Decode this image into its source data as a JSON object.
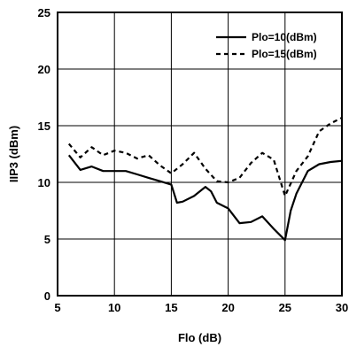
{
  "chart_data": {
    "type": "line",
    "xlabel": "Flo (dB)",
    "ylabel": "IIP3 (dBm)",
    "xlim": [
      5,
      30
    ],
    "ylim": [
      0,
      25
    ],
    "x_ticks": [
      5,
      10,
      15,
      20,
      25,
      30
    ],
    "y_ticks": [
      0,
      5,
      10,
      15,
      20,
      25
    ],
    "grid": true,
    "legend_position": "top-right",
    "series": [
      {
        "name": "Plo=10(dBm)",
        "style": "solid",
        "color": "#000000",
        "x": [
          6,
          7,
          8,
          9,
          10,
          11,
          12,
          13,
          14,
          15,
          15.5,
          16,
          17,
          18,
          18.5,
          19,
          20,
          21,
          22,
          23,
          24,
          25,
          25.5,
          26,
          27,
          28,
          29,
          30
        ],
        "y": [
          12.4,
          11.1,
          11.4,
          11.0,
          11.0,
          11.0,
          10.7,
          10.4,
          10.1,
          9.8,
          8.2,
          8.3,
          8.8,
          9.6,
          9.2,
          8.2,
          7.7,
          6.4,
          6.5,
          7.0,
          5.9,
          4.9,
          7.5,
          9.0,
          11.0,
          11.6,
          11.8,
          11.9
        ]
      },
      {
        "name": "Plo=15(dBm)",
        "style": "dashed",
        "color": "#000000",
        "x": [
          6,
          7,
          8,
          9,
          10,
          11,
          12,
          13,
          14,
          15,
          16,
          17,
          18,
          19,
          20,
          21,
          22,
          23,
          24,
          25,
          26,
          27,
          28,
          29,
          30
        ],
        "y": [
          13.4,
          12.2,
          13.1,
          12.4,
          12.8,
          12.6,
          12.1,
          12.4,
          11.5,
          10.8,
          11.6,
          12.6,
          11.2,
          10.1,
          10.0,
          10.4,
          11.7,
          12.6,
          12.0,
          8.8,
          11.0,
          12.3,
          14.5,
          15.2,
          15.7
        ]
      }
    ]
  }
}
